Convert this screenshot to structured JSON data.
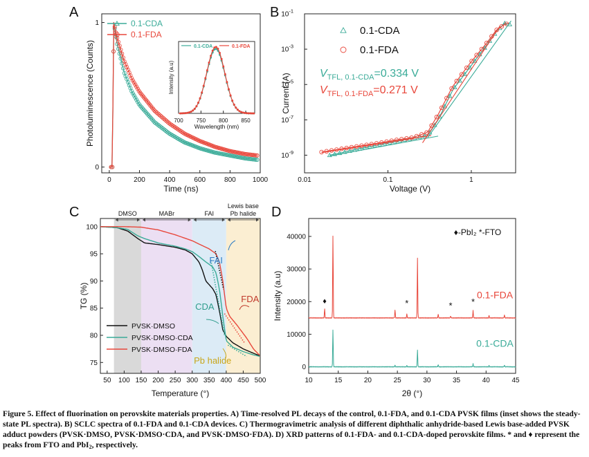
{
  "colors": {
    "cda": "#3aab98",
    "fda": "#e8463a",
    "control": "#111111",
    "fai_text": "#2b7bc4",
    "fda_text": "#c0392b",
    "cda_text": "#2f9d8d",
    "pb_text": "#c9a61a",
    "axis": "#222222"
  },
  "panels": {
    "A": {
      "label": "A",
      "xlabel": "Time (ns)",
      "ylabel": "Photoluminescence (Counts)",
      "xlim": [
        -50,
        1000
      ],
      "ylim": [
        -0.04,
        1.06
      ],
      "xticks": [
        0,
        200,
        400,
        600,
        800,
        1000
      ],
      "yticks": [
        0,
        1
      ],
      "legend": [
        {
          "text": "0.1-CDA",
          "series": "cda",
          "marker": "triangle"
        },
        {
          "text": "0.1-FDA",
          "series": "fda",
          "marker": "circle"
        }
      ],
      "inset": {
        "ylabel": "Intensity (a.u)",
        "xlabel": "Wavelength (nm)",
        "xlim": [
          700,
          870
        ],
        "ylim": [
          0,
          1.08
        ],
        "xticks": [
          700,
          750,
          800,
          850
        ],
        "legend": [
          {
            "text": "0.1-CDA",
            "series": "cda"
          },
          {
            "text": "0.1-FDA",
            "series": "fda"
          }
        ],
        "peak_nm": 783,
        "fwhm_nm": 48
      }
    },
    "B": {
      "label": "B",
      "xlabel": "Voltage (V)",
      "ylabel": "Current (A)",
      "xlim": [
        0.01,
        3.4
      ],
      "ylim": [
        1e-10,
        0.1
      ],
      "xticks": [
        {
          "value": 0.01,
          "text": "0.01"
        },
        {
          "value": 0.1,
          "text": "0.1"
        },
        {
          "value": 1,
          "text": "1"
        }
      ],
      "yticks": [
        {
          "value": 1e-09,
          "exp": "-9"
        },
        {
          "value": 1e-07,
          "exp": "-7"
        },
        {
          "value": 1e-05,
          "exp": "-5"
        },
        {
          "value": 0.001,
          "exp": "-3"
        },
        {
          "value": 0.1,
          "exp": "-1"
        }
      ],
      "legend": [
        {
          "text": "0.1-CDA",
          "series": "cda",
          "marker": "triangle"
        },
        {
          "text": "0.1-FDA",
          "series": "fda",
          "marker": "circle"
        }
      ],
      "annotations": [
        {
          "v": "V",
          "sub": "TFL, 0.1-CDA",
          "value": "=0.334 V",
          "series": "cda"
        },
        {
          "v": "V",
          "sub": "TFL, 0.1-FDA",
          "value": "=0.271 V",
          "series": "fda"
        }
      ]
    },
    "C": {
      "label": "C",
      "xlabel": "Temperature (°)",
      "ylabel": "TG (%)",
      "xlim": [
        30,
        500
      ],
      "ylim": [
        73,
        101.5
      ],
      "xticks": [
        50,
        100,
        150,
        200,
        250,
        300,
        350,
        400,
        450,
        500
      ],
      "yticks": [
        75,
        80,
        85,
        90,
        95,
        100
      ],
      "regions": [
        {
          "from": 70,
          "to": 150,
          "label": "DMSO",
          "color": "#d9d9d9"
        },
        {
          "from": 150,
          "to": 300,
          "label": "MABr",
          "color": "#ecdff3"
        },
        {
          "from": 300,
          "to": 400,
          "label": "FAI",
          "color": "#dcebf6"
        },
        {
          "from": 400,
          "to": 500,
          "label": "Lewis base\nPb halide",
          "color": "#fbeed2"
        }
      ],
      "legend": [
        {
          "text": "PVSK·DMSO",
          "series": "control"
        },
        {
          "text": "PVSK·DMSO·CDA",
          "series": "cda"
        },
        {
          "text": "PVSK·DMSO·FDA",
          "series": "fda"
        }
      ],
      "annotations": [
        {
          "text": "FAI",
          "x": 370,
          "y": 93.2,
          "color": "fai_text"
        },
        {
          "text": "FDA",
          "x": 470,
          "y": 86.1,
          "color": "fda_text"
        },
        {
          "text": "CDA",
          "x": 337,
          "y": 84.7,
          "color": "cda_text"
        },
        {
          "text": "Pb halide",
          "x": 360,
          "y": 74.8,
          "color": "pb_text"
        }
      ]
    },
    "D": {
      "label": "D",
      "xlabel": "2θ (°)",
      "ylabel": "Intensity (a.u)",
      "xlim": [
        10,
        45
      ],
      "ylim": [
        -2000,
        45500
      ],
      "xticks": [
        10,
        15,
        20,
        25,
        30,
        35,
        40,
        45
      ],
      "yticks": [
        0,
        10000,
        20000,
        30000,
        40000
      ],
      "legend_note": "♦-PbI₂ *-FTO",
      "curve_labels": [
        {
          "text": "0.1-FDA",
          "series": "fda"
        },
        {
          "text": "0.1-CDA",
          "series": "cda"
        }
      ]
    }
  },
  "chart_data": [
    {
      "panel": "A",
      "type": "line",
      "title": "",
      "xlabel": "Time (ns)",
      "ylabel": "Photoluminescence (Counts)",
      "xlim": [
        -50,
        1000
      ],
      "ylim": [
        -0.04,
        1.06
      ],
      "series": [
        {
          "name": "0.1-CDA",
          "x": [
            0,
            20,
            30,
            50,
            100,
            150,
            200,
            300,
            400,
            500,
            600,
            700,
            800,
            900,
            980
          ],
          "y": [
            0,
            0,
            1.0,
            0.86,
            0.65,
            0.52,
            0.43,
            0.31,
            0.23,
            0.17,
            0.13,
            0.1,
            0.08,
            0.06,
            0.05
          ]
        },
        {
          "name": "0.1-FDA",
          "x": [
            0,
            20,
            30,
            50,
            100,
            150,
            200,
            300,
            400,
            500,
            600,
            700,
            800,
            900,
            980
          ],
          "y": [
            0,
            0,
            1.0,
            0.9,
            0.73,
            0.61,
            0.52,
            0.39,
            0.3,
            0.23,
            0.18,
            0.14,
            0.11,
            0.09,
            0.08
          ]
        }
      ],
      "inset": {
        "type": "line",
        "xlabel": "Wavelength (nm)",
        "ylabel": "Intensity (a.u)",
        "peak_nm": 783,
        "fwhm_nm": 48,
        "series": [
          "0.1-CDA",
          "0.1-FDA"
        ]
      }
    },
    {
      "panel": "B",
      "type": "scatter",
      "title": "",
      "xlabel": "Voltage (V)",
      "ylabel": "Current (A)",
      "xscale": "log",
      "yscale": "log",
      "xlim": [
        0.01,
        3.4
      ],
      "ylim": [
        1e-10,
        0.1
      ],
      "series": [
        {
          "name": "0.1-CDA",
          "x": [
            0.02,
            0.05,
            0.1,
            0.2,
            0.3,
            0.4,
            0.6,
            1.0,
            1.5,
            2.0,
            2.5,
            2.9
          ],
          "y": [
            1e-09,
            2.5e-09,
            5e-09,
            9e-09,
            1.3e-08,
            1e-07,
            5e-06,
            0.00012,
            0.0015,
            0.01,
            0.03,
            0.025
          ]
        },
        {
          "name": "0.1-FDA",
          "x": [
            0.016,
            0.04,
            0.08,
            0.12,
            0.2,
            0.3,
            0.4,
            0.6,
            1.0,
            1.5,
            2.0,
            2.5,
            2.9
          ],
          "y": [
            1.5e-09,
            3e-09,
            5e-09,
            7e-09,
            1e-08,
            2e-08,
            2e-07,
            8e-06,
            0.0002,
            0.002,
            0.012,
            0.025,
            0.03
          ]
        }
      ],
      "annotations": [
        "VTFL, 0.1-CDA=0.334 V",
        "VTFL, 0.1-FDA=0.271 V"
      ]
    },
    {
      "panel": "C",
      "type": "line",
      "title": "",
      "xlabel": "Temperature (°)",
      "ylabel": "TG (%)",
      "xlim": [
        30,
        500
      ],
      "ylim": [
        73,
        101.5
      ],
      "series": [
        {
          "name": "PVSK·DMSO",
          "x": [
            30,
            80,
            110,
            140,
            160,
            200,
            250,
            280,
            300,
            320,
            330,
            340,
            350,
            360,
            370,
            380,
            390,
            400,
            420,
            450,
            480,
            500
          ],
          "y": [
            100,
            99.8,
            99.2,
            97.8,
            97.0,
            96.7,
            96.2,
            95.7,
            95.0,
            93.5,
            92.0,
            90.0,
            89.3,
            88.6,
            87.5,
            84.5,
            81.0,
            79.8,
            78.6,
            77.5,
            76.7,
            76.2
          ]
        },
        {
          "name": "PVSK·DMSO·CDA",
          "x": [
            30,
            80,
            110,
            140,
            160,
            200,
            250,
            280,
            300,
            320,
            340,
            360,
            370,
            380,
            390,
            400,
            420,
            450,
            480,
            500
          ],
          "y": [
            100,
            99.8,
            99.5,
            98.3,
            97.8,
            97.0,
            96.4,
            95.9,
            95.4,
            94.5,
            93.5,
            92.6,
            91.5,
            88.5,
            83.5,
            79.0,
            77.8,
            77.0,
            76.4,
            76.1
          ]
        },
        {
          "name": "PVSK·DMSO·FDA",
          "x": [
            30,
            100,
            150,
            200,
            250,
            300,
            350,
            370,
            380,
            390,
            400,
            410,
            430,
            460,
            480,
            500
          ],
          "y": [
            100,
            100,
            99.9,
            99.4,
            98.5,
            97.4,
            95.9,
            95.0,
            93.5,
            90.0,
            85.0,
            83.5,
            82.0,
            79.5,
            77.5,
            76.2
          ]
        }
      ],
      "regions": [
        "DMSO",
        "MABr",
        "FAI",
        "Lewis base Pb halide"
      ]
    },
    {
      "panel": "D",
      "type": "line",
      "title": "",
      "xlabel": "2θ (°)",
      "ylabel": "Intensity (a.u)",
      "xlim": [
        10,
        45
      ],
      "ylim": [
        -2000,
        45500
      ],
      "series": [
        {
          "name": "0.1-FDA",
          "baseline": 15000,
          "peaks": [
            {
              "x": 12.7,
              "y": 17800
            },
            {
              "x": 14.1,
              "y": 40200
            },
            {
              "x": 24.6,
              "y": 17400
            },
            {
              "x": 26.6,
              "y": 16200
            },
            {
              "x": 28.4,
              "y": 33500
            },
            {
              "x": 31.9,
              "y": 16200
            },
            {
              "x": 34.0,
              "y": 15600
            },
            {
              "x": 37.8,
              "y": 17200
            },
            {
              "x": 40.5,
              "y": 15700
            },
            {
              "x": 43.1,
              "y": 15900
            }
          ]
        },
        {
          "name": "0.1-CDA",
          "baseline": 0,
          "peaks": [
            {
              "x": 14.1,
              "y": 11400
            },
            {
              "x": 24.6,
              "y": 500
            },
            {
              "x": 26.6,
              "y": 400
            },
            {
              "x": 28.4,
              "y": 5300
            },
            {
              "x": 31.9,
              "y": 700
            },
            {
              "x": 37.8,
              "y": 900
            },
            {
              "x": 40.5,
              "y": 400
            },
            {
              "x": 43.1,
              "y": 500
            }
          ]
        }
      ],
      "markers": [
        {
          "symbol": "♦",
          "x": 12.7,
          "meaning": "PbI2"
        },
        {
          "symbol": "*",
          "x": 26.6,
          "meaning": "FTO"
        },
        {
          "symbol": "*",
          "x": 34.0,
          "meaning": "FTO"
        },
        {
          "symbol": "*",
          "x": 37.8,
          "meaning": "FTO"
        }
      ]
    }
  ],
  "caption": {
    "lead": "Figure 5. Effect of fluorination on perovskite materials properties. A) Time-resolved PL decays of the control, 0.1-FDA, and 0.1-CDA PVSK films (inset shows the steady-state PL spectra). B) SCLC spectra of 0.1-FDA and 0.1-CDA devices. C) Thermogravimetric analysis of different diphthalic anhydride-based Lewis base-added PVSK adduct powders (PVSK·DMSO, PVSK·DMSO·CDA, and PVSK·DMSO·FDA). D) XRD patterns of 0.1-FDA- and 0.1-CDA-doped perovskite films. * and ♦ represent the peaks from FTO and PbI",
    "sub": "2",
    "tail": ", respectively."
  }
}
